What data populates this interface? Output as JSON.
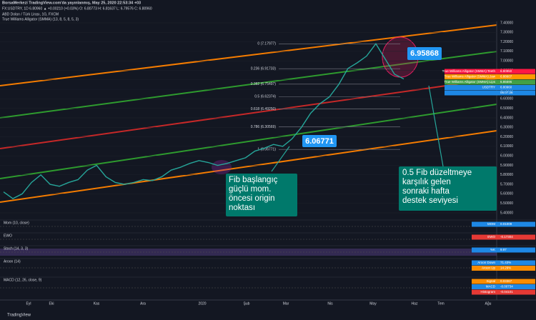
{
  "header": {
    "published": "BorsaMerkezi TradingView.com'da yayınlanmış, May 25, 2020 22:53:34 +03",
    "symbol_line": "FX:USDTRY, 1D 6.80960 ▲ +0.00210 (+0.03%) O: 6.80773 H: 6.81637 L: 6.79576 C: 6.80960"
  },
  "chart_data": {
    "type": "line",
    "title": "ABD Doları / Türk Lirası, 1G, FXCM",
    "subtitle": "True Williams Alligator (SMMA) (13, 8, 5, 8, 5, 3)",
    "x_labels": [
      "Eyl",
      "Eki",
      "Kas",
      "Ara",
      "2020",
      "Şub",
      "Mar",
      "Nis",
      "May",
      "Haz",
      "Tem",
      "Ağu"
    ],
    "series": [
      {
        "name": "USDTRY",
        "color": "#26a69a",
        "values": [
          5.62,
          5.55,
          5.6,
          5.72,
          5.8,
          5.7,
          5.68,
          5.72,
          5.75,
          5.85,
          5.9,
          5.78,
          5.72,
          5.7,
          5.72,
          5.75,
          5.74,
          5.78,
          5.85,
          5.88,
          5.92,
          5.95,
          5.93,
          5.9,
          5.92,
          5.95,
          5.98,
          6.05,
          6.08,
          6.12,
          6.1,
          6.18,
          6.3,
          6.45,
          6.55,
          6.62,
          6.75,
          6.92,
          6.98,
          7.05,
          7.18,
          7.02,
          6.86,
          6.81
        ]
      }
    ],
    "ylim": [
      5.4,
      7.4
    ],
    "yticks": [
      {
        "value": 7.4,
        "label": "7.40000"
      },
      {
        "value": 7.3,
        "label": "7.30000"
      },
      {
        "value": 7.2,
        "label": "7.20000"
      },
      {
        "value": 7.1,
        "label": "7.10000"
      },
      {
        "value": 7.0,
        "label": "7.00000"
      },
      {
        "value": 6.9,
        "label": "6.90000"
      },
      {
        "value": 6.8,
        "label": "6.80000"
      },
      {
        "value": 6.7,
        "label": "6.70000"
      },
      {
        "value": 6.6,
        "label": "6.60000"
      },
      {
        "value": 6.5,
        "label": "6.50000"
      },
      {
        "value": 6.4,
        "label": "6.40000"
      },
      {
        "value": 6.3,
        "label": "6.30000"
      },
      {
        "value": 6.2,
        "label": "6.20000"
      },
      {
        "value": 6.1,
        "label": "6.10000"
      },
      {
        "value": 6.0,
        "label": "6.00000"
      },
      {
        "value": 5.9,
        "label": "5.90000"
      },
      {
        "value": 5.8,
        "label": "5.80000"
      },
      {
        "value": 5.7,
        "label": "5.70000"
      },
      {
        "value": 5.6,
        "label": "5.60000"
      },
      {
        "value": 5.5,
        "label": "5.50000"
      },
      {
        "value": 5.4,
        "label": "5.40000"
      }
    ],
    "fib_levels": [
      {
        "value": 7.17977,
        "label": "0 (7.17977)"
      },
      {
        "value": 6.91733,
        "label": "0.236 (6.91733)"
      },
      {
        "value": 6.75497,
        "label": "0.382 (6.75497)"
      },
      {
        "value": 6.62374,
        "label": "0.5 (6.62374)"
      },
      {
        "value": 6.4925,
        "label": "0.618 (6.49250)"
      },
      {
        "value": 6.30569,
        "label": "0.786 (6.30569)"
      },
      {
        "value": 6.06771,
        "label": "1 (6.06771)"
      }
    ],
    "annotations": {
      "high": "6.95868",
      "low": "6.06771",
      "left_note": [
        "Fib başlangıç",
        "güçlü mom.",
        "öncesi origin",
        "noktası"
      ],
      "right_note": [
        "0.5 Fib düzeltmeye",
        "karşılık gelen",
        "sonraki hafta",
        "destek seviyesi"
      ]
    },
    "price_tags": [
      {
        "label": "True Williams Alligator (SMMA):Teeth",
        "value": "6.80950",
        "color": "#ff1744"
      },
      {
        "label": "True Williams Alligator (SMMA):Jaw",
        "value": "6.88607",
        "color": "#ff9800"
      },
      {
        "label": "True Williams Alligator (SMMA):Lips",
        "value": "6.85596",
        "color": "#43a047"
      },
      {
        "label": "USDTRY",
        "value": "6.80960",
        "color": "#1e88e5"
      },
      {
        "label": "",
        "value": "05:07:26",
        "color": "#1e88e5"
      }
    ]
  },
  "indicators": [
    {
      "title": "Mom (10, close)",
      "tags": [
        {
          "label": "MOM",
          "value": "0.01009",
          "color": "#1e88e5"
        }
      ]
    },
    {
      "title": "EWO",
      "tags": [
        {
          "label": "EWO",
          "value": "-0.17304",
          "color": "#e53935"
        }
      ]
    },
    {
      "title": "Stoch (14, 3, 3)",
      "tags": [
        {
          "label": "%K",
          "value": "9.97",
          "color": "#1e88e5"
        }
      ]
    },
    {
      "title": "Aroon (14)",
      "tags": [
        {
          "label": "Aroon Down",
          "value": "71.43%",
          "color": "#1e88e5"
        },
        {
          "label": "Aroon Up",
          "value": "14.29%",
          "color": "#fb8c00"
        }
      ]
    },
    {
      "title": "MACD (12, 26, close, 9)",
      "tags": [
        {
          "label": "Signal",
          "value": "0.03367",
          "color": "#fb8c00"
        },
        {
          "label": "MACD",
          "value": "-0.00734",
          "color": "#1e88e5"
        },
        {
          "label": "Histogram",
          "value": "-0.04101",
          "color": "#e53935"
        }
      ]
    }
  ],
  "footer": {
    "brand": "TradingView"
  }
}
